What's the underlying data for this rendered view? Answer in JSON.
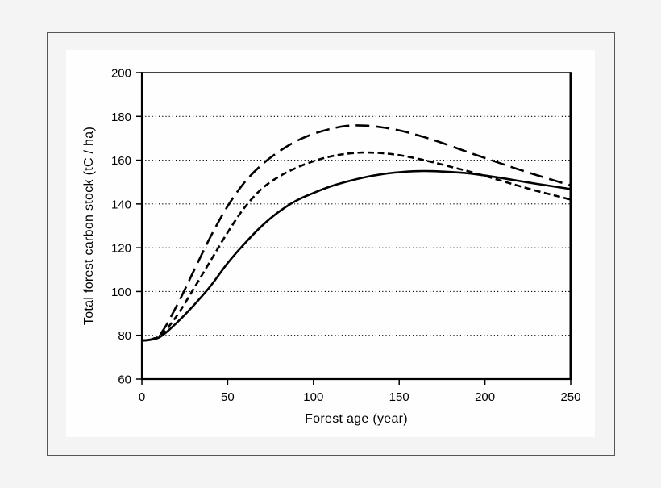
{
  "figure": {
    "page_background": "#f4f4f4",
    "frame_border_color": "#565656",
    "chart_background": "#fefefe",
    "ink_color": "#000000"
  },
  "chart_data": {
    "type": "line",
    "title": "",
    "xlabel": "Forest age (year)",
    "ylabel": "Total forest carbon stock (tC / ha)",
    "xlim": [
      0,
      250
    ],
    "ylim": [
      60,
      200
    ],
    "x_ticks": [
      0,
      50,
      100,
      150,
      200,
      250
    ],
    "y_ticks": [
      60,
      80,
      100,
      120,
      140,
      160,
      180,
      200
    ],
    "gridlines_at": [
      80,
      100,
      120,
      140,
      160,
      180
    ],
    "grid_style": "dotted-horizontal",
    "legend": "none",
    "x_step": 10,
    "series": [
      {
        "name": "solid-line",
        "style": "solid",
        "color": "#000000",
        "stroke_width": 2.6,
        "dash": "",
        "values": [
          77.5,
          79,
          85.5,
          93.5,
          102.5,
          113,
          122,
          130,
          136.5,
          141.5,
          145,
          148,
          150.3,
          152.2,
          153.6,
          154.5,
          155,
          155,
          154.6,
          154,
          153,
          151.8,
          150.5,
          149.2,
          148,
          146.8
        ]
      },
      {
        "name": "short-dashed-line",
        "style": "short-dash",
        "color": "#000000",
        "stroke_width": 2.6,
        "dash": "8 4.5",
        "values": [
          77.5,
          79.5,
          88.5,
          101,
          114,
          127,
          138.5,
          147,
          152.5,
          156.5,
          159.5,
          161.7,
          163,
          163.5,
          163.2,
          162.3,
          160.8,
          159,
          157,
          155,
          152.8,
          150.5,
          148.2,
          146,
          144,
          142
        ]
      },
      {
        "name": "long-dashed-line",
        "style": "long-dash",
        "color": "#000000",
        "stroke_width": 2.6,
        "dash": "17 8",
        "values": [
          77.5,
          80,
          93,
          109,
          125,
          139,
          150,
          158,
          164,
          168.7,
          172,
          174.3,
          175.7,
          175.8,
          175,
          173.6,
          171.6,
          169.2,
          166.5,
          163.7,
          161,
          158.3,
          155.7,
          153.2,
          150.8,
          148.5
        ]
      }
    ]
  }
}
